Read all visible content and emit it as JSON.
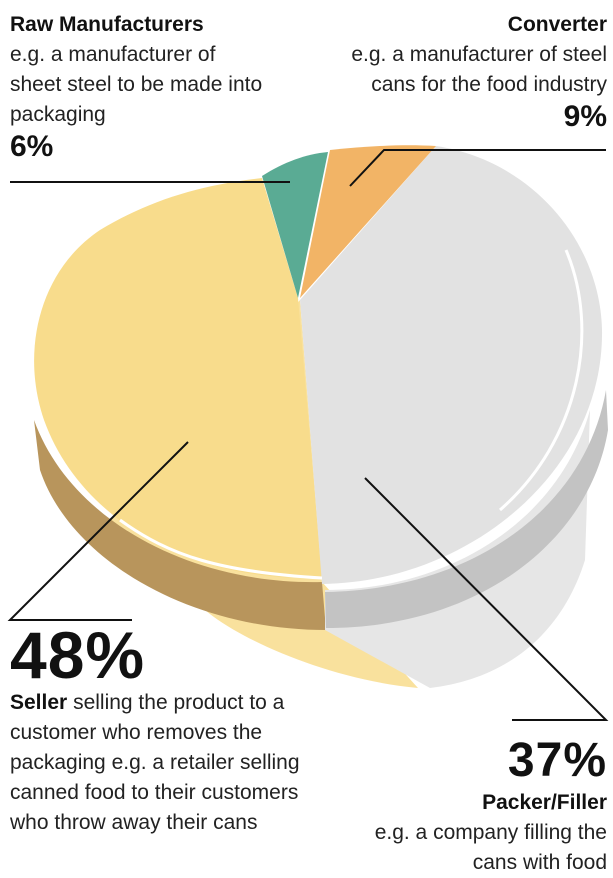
{
  "colors": {
    "raw": "#5aab94",
    "converter": "#f2b466",
    "seller": "#f8dc8c",
    "packer": "#e2e2e2",
    "seller_side": "#b8955c",
    "packer_side": "#c3c3c3"
  },
  "chart_data": {
    "type": "pie",
    "style": "3d exploded",
    "title": "",
    "slices": [
      {
        "name": "Raw Manufacturers",
        "value": 6,
        "label": "6%",
        "description": "e.g. a manufacturer of sheet steel to be made into packaging"
      },
      {
        "name": "Converter",
        "value": 9,
        "label": "9%",
        "description": "e.g. a manufacturer of steel cans for the food industry"
      },
      {
        "name": "Packer/Filler",
        "value": 37,
        "label": "37%",
        "description": "e.g. a company filling the cans with food"
      },
      {
        "name": "Seller",
        "value": 48,
        "label": "48%",
        "description": "selling the product to a customer who removes the packaging e.g. a retailer selling canned food to their customers who throw away their cans"
      }
    ]
  }
}
